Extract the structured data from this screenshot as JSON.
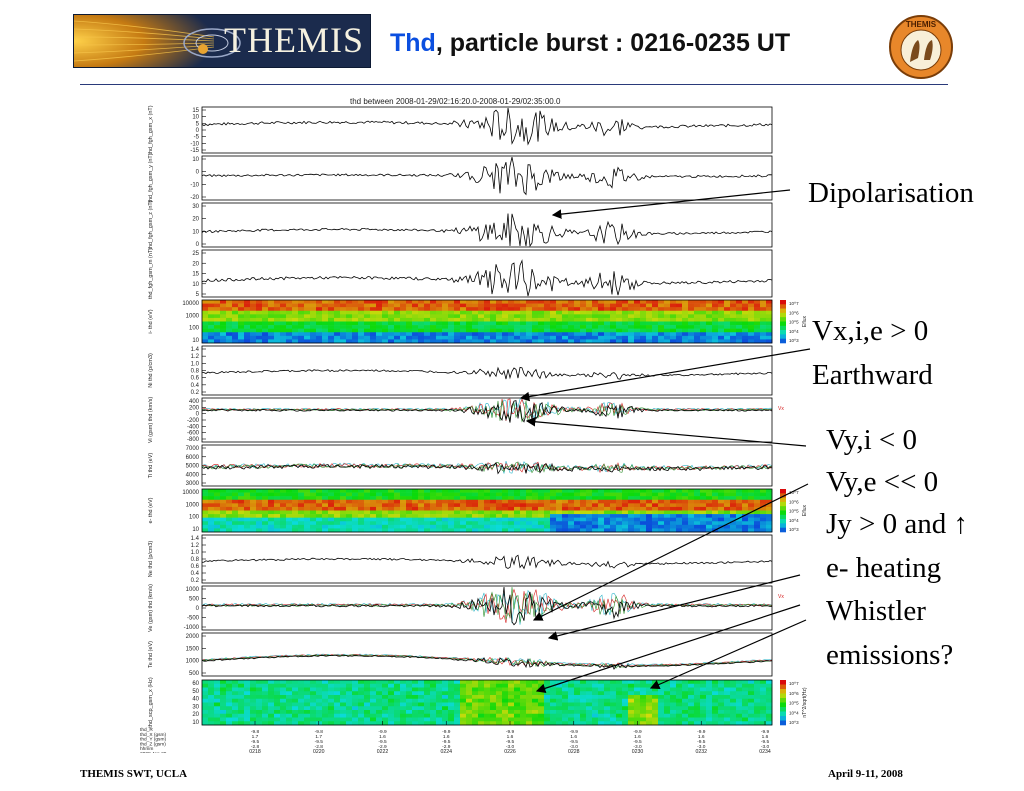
{
  "header": {
    "logo_text": "THEMIS",
    "title_spacecraft": "Thd",
    "title_rest": ", particle burst : 0216-0235 UT",
    "badge_text": "THEMIS"
  },
  "plot_header": "thd between 2008-01-29/02:16:20.0-2008-01-29/02:35:00.0",
  "annotations": {
    "dipolarisation": "Dipolarisation",
    "vx_line1": "Vx,i,e > 0",
    "vx_line2": "Earthward",
    "vy_line1": "Vy,i < 0",
    "vy_line2": "Vy,e << 0",
    "jy_line": "Jy > 0 and ↑",
    "heating": "e- heating",
    "whistler1": "Whistler",
    "whistler2": "emissions?"
  },
  "footer": {
    "left": "THEMIS SWT, UCLA",
    "right": "April 9-11, 2008"
  },
  "colors": {
    "title_accent": "#0b4fe0",
    "trace": "#000000"
  },
  "chart_data": {
    "type": "line",
    "title": "thd between 2008-01-29/02:16:20.0-2008-01-29/02:35:00.0",
    "panels": [
      {
        "ylabel": "thd_fgh_gsm_x (nT)",
        "ticks": [
          "15",
          "10",
          "5",
          "0",
          "-5",
          "-10",
          "-15"
        ],
        "kind": "line"
      },
      {
        "ylabel": "thd_fgh_gsm_y (nT)",
        "ticks": [
          "10",
          "0",
          "-10",
          "-20"
        ],
        "kind": "line"
      },
      {
        "ylabel": "thd_fgh_gsm_z (nT)",
        "ticks": [
          "30",
          "20",
          "10",
          "0"
        ],
        "kind": "line"
      },
      {
        "ylabel": "thd_fgh_gsm_m (nT)",
        "ticks": [
          "25",
          "20",
          "15",
          "10",
          "5"
        ],
        "kind": "line"
      },
      {
        "ylabel": "i- thd (eV)",
        "ticks": [
          "10000",
          "1000",
          "100",
          "10"
        ],
        "kind": "spectrogram",
        "colorbar": "Eflux"
      },
      {
        "ylabel": "Ni thd (p/cm3)",
        "ticks": [
          "1.4",
          "1.2",
          "1.0",
          "0.8",
          "0.6",
          "0.4",
          "0.2"
        ],
        "kind": "line"
      },
      {
        "ylabel": "Vi (gsm) thd (km/s)",
        "ticks": [
          "400",
          "200",
          "0",
          "-200",
          "-400",
          "-600",
          "-800"
        ],
        "kind": "multi",
        "legend": "Vx"
      },
      {
        "ylabel": "Ti thd (eV)",
        "ticks": [
          "7000",
          "6000",
          "5000",
          "4000",
          "3000"
        ],
        "kind": "multi"
      },
      {
        "ylabel": "e- thd (eV)",
        "ticks": [
          "10000",
          "1000",
          "100",
          "10"
        ],
        "kind": "spectrogram",
        "colorbar": "Eflux"
      },
      {
        "ylabel": "Ne thd (p/cm3)",
        "ticks": [
          "1.4",
          "1.2",
          "1.0",
          "0.8",
          "0.6",
          "0.4",
          "0.2"
        ],
        "kind": "line"
      },
      {
        "ylabel": "Ve (gsm) thd (km/s)",
        "ticks": [
          "1000",
          "500",
          "0",
          "-500",
          "-1000"
        ],
        "kind": "multi",
        "legend": "Vx"
      },
      {
        "ylabel": "Te thd (eV)",
        "ticks": [
          "2000",
          "1500",
          "1000",
          "500"
        ],
        "kind": "multi"
      },
      {
        "ylabel": "thd_scp_gsm_x (Hz)",
        "ticks": [
          "60",
          "50",
          "40",
          "30",
          "20",
          "10"
        ],
        "kind": "spectrogram",
        "colorbar": "nT^2/sqrt(Hz)"
      }
    ],
    "x_ticks": [
      "0218",
      "0220",
      "0222",
      "0224",
      "0226",
      "0228",
      "0230",
      "0232",
      "0234"
    ],
    "ephemeris_labels": [
      "thd_R",
      "thd_X (gsm)",
      "thd_Y (gsm)",
      "thd_Z (gsm)",
      "hhmm",
      "2008 Jan 29"
    ],
    "ephemeris_values": [
      [
        "-9.8",
        "-9.8",
        "-9.9",
        "-9.9",
        "-9.9",
        "-9.9",
        "-9.9",
        "-9.9",
        "-9.9"
      ],
      [
        "1.7",
        "1.7",
        "1.6",
        "1.6",
        "1.6",
        "1.6",
        "1.6",
        "1.6",
        "1.6"
      ],
      [
        "-9.5",
        "-9.5",
        "-9.5",
        "-9.5",
        "-9.5",
        "-9.5",
        "-9.5",
        "-9.5",
        "-9.5"
      ],
      [
        "-2.8",
        "-2.8",
        "-2.9",
        "-2.9",
        "-3.0",
        "-3.0",
        "-3.0",
        "-3.0",
        "-3.0"
      ]
    ],
    "colorbar_ticks": [
      "10^7",
      "10^6",
      "10^5",
      "10^4",
      "10^3"
    ]
  }
}
